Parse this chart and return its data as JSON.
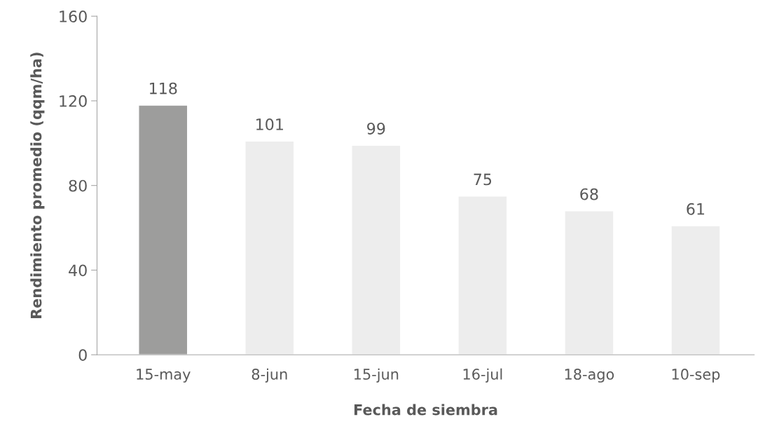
{
  "chart_data": {
    "type": "bar",
    "categories": [
      "15-may",
      "8-jun",
      "15-jun",
      "16-jul",
      "18-ago",
      "10-sep"
    ],
    "values": [
      118,
      101,
      99,
      75,
      68,
      61
    ],
    "colors": [
      "#9d9d9c",
      "#ededed",
      "#ededed",
      "#ededed",
      "#ededed",
      "#ededed"
    ],
    "xlabel": "Fecha de siembra",
    "ylabel": "Rendimiento promedio (qqm/ha)",
    "ylim": [
      0,
      160
    ],
    "yticks": [
      0,
      40,
      80,
      120,
      160
    ],
    "data_labels": true,
    "grid": false,
    "legend": false
  }
}
